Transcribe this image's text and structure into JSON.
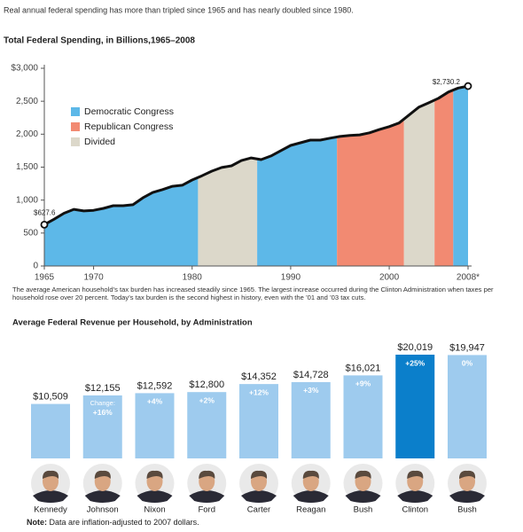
{
  "intro": "Real annual federal spending has more than tripled since 1965 and has nearly doubled since 1980.",
  "chart_data": [
    {
      "type": "area",
      "title": "Total Federal Spending, in Billions,1965–2008",
      "x": [
        1965,
        1966,
        1967,
        1968,
        1969,
        1970,
        1971,
        1972,
        1973,
        1974,
        1975,
        1976,
        1977,
        1978,
        1979,
        1980,
        1981,
        1982,
        1983,
        1984,
        1985,
        1986,
        1987,
        1988,
        1989,
        1990,
        1991,
        1992,
        1993,
        1994,
        1995,
        1996,
        1997,
        1998,
        1999,
        2000,
        2001,
        2002,
        2003,
        2004,
        2005,
        2006,
        2007,
        2008
      ],
      "values": [
        627.6,
        710,
        800,
        860,
        835,
        845,
        875,
        915,
        915,
        930,
        1035,
        1115,
        1160,
        1210,
        1225,
        1305,
        1370,
        1440,
        1495,
        1520,
        1600,
        1640,
        1615,
        1670,
        1750,
        1830,
        1870,
        1910,
        1910,
        1940,
        1965,
        1980,
        1990,
        2020,
        2070,
        2115,
        2170,
        2290,
        2410,
        2475,
        2545,
        2640,
        2700,
        2730.2
      ],
      "value_labels": [
        "$627.6",
        null,
        null,
        null,
        null,
        null,
        null,
        null,
        null,
        null,
        null,
        null,
        null,
        null,
        null,
        null,
        null,
        null,
        null,
        null,
        null,
        null,
        null,
        null,
        null,
        null,
        null,
        null,
        null,
        null,
        null,
        null,
        null,
        null,
        null,
        null,
        null,
        null,
        null,
        null,
        null,
        null,
        null,
        "$2,730.2"
      ],
      "xlim": [
        1965,
        2008
      ],
      "xticks": [
        1965,
        1970,
        1980,
        1990,
        2000,
        {
          "value": 2008,
          "label": "2008*"
        }
      ],
      "ylim": [
        0,
        3000
      ],
      "yticks": [
        {
          "value": 3000,
          "label": "$3,000"
        },
        {
          "value": 2500,
          "label": "2,500"
        },
        {
          "value": 2000,
          "label": "2,000"
        },
        {
          "value": 1500,
          "label": "1,500"
        },
        {
          "value": 1000,
          "label": "1,000"
        },
        500,
        0
      ],
      "legend": [
        {
          "name": "Democratic Congress",
          "color": "#5db8e8"
        },
        {
          "name": "Republican Congress",
          "color": "#f28a72"
        },
        {
          "name": "Divided",
          "color": "#dcd8ca"
        }
      ],
      "regions": [
        {
          "start": 1965,
          "end": 1980.6,
          "congress": "Democratic Congress"
        },
        {
          "start": 1980.6,
          "end": 1986.6,
          "congress": "Divided"
        },
        {
          "start": 1986.6,
          "end": 1994.7,
          "congress": "Democratic Congress"
        },
        {
          "start": 1994.7,
          "end": 2001.5,
          "congress": "Republican Congress"
        },
        {
          "start": 2001.5,
          "end": 2004.6,
          "congress": "Divided"
        },
        {
          "start": 2004.6,
          "end": 2006.5,
          "congress": "Republican Congress"
        },
        {
          "start": 2006.5,
          "end": 2008,
          "congress": "Democratic Congress"
        }
      ],
      "caption": "The average American household’s tax burden has increased steadily since 1965. The largest increase occurred during the Clinton Administration when taxes per household rose over 20 percent. Today’s tax burden is the second highest in history, even with the ’01 and ’03 tax cuts."
    },
    {
      "type": "bar",
      "title": "Average Federal Revenue per Household, by Administration",
      "categories": [
        "Kennedy",
        "Johnson",
        "Nixon",
        "Ford",
        "Carter",
        "Reagan",
        "Bush",
        "Clinton",
        "Bush"
      ],
      "values": [
        10509,
        12155,
        12592,
        12800,
        14352,
        14728,
        16021,
        20019,
        19947
      ],
      "value_labels": [
        "$10,509",
        "$12,155",
        "$12,592",
        "$12,800",
        "$14,352",
        "$14,728",
        "$16,021",
        "$20,019",
        "$19,947"
      ],
      "change_note": "Change:",
      "change_labels": [
        null,
        "+16%",
        "+4%",
        "+2%",
        "+12%",
        "+3%",
        "+9%",
        "+25%",
        "0%"
      ],
      "colors": [
        "#9ecbee",
        "#9ecbee",
        "#9ecbee",
        "#9ecbee",
        "#9ecbee",
        "#9ecbee",
        "#9ecbee",
        "#0b7fcb",
        "#9ecbee"
      ],
      "note": {
        "label": "Note:",
        "text": "Data are inflation-adjusted to 2007 dollars."
      }
    }
  ]
}
